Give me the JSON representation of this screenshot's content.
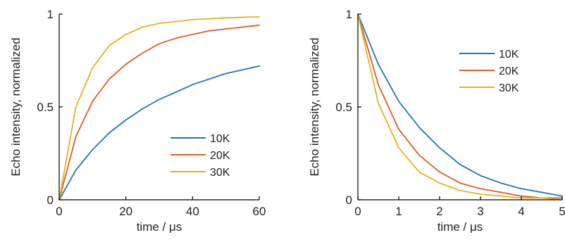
{
  "chart_data": [
    {
      "type": "line",
      "title": "",
      "xlabel": "time / μs",
      "ylabel": "Echo intensity, normalized",
      "xlim": [
        0,
        60
      ],
      "ylim": [
        0,
        1
      ],
      "xticks": [
        0,
        20,
        40,
        60
      ],
      "yticks": [
        0,
        0.5,
        1
      ],
      "ytick_labels": [
        "0",
        "0.5",
        "1"
      ],
      "legend_position": "lower-right",
      "grid": false,
      "series": [
        {
          "name": "10K",
          "color": "#1f77b4",
          "x": [
            0,
            5,
            10,
            15,
            20,
            25,
            30,
            35,
            40,
            45,
            50,
            55,
            60
          ],
          "y": [
            0,
            0.16,
            0.27,
            0.36,
            0.43,
            0.49,
            0.54,
            0.58,
            0.62,
            0.65,
            0.68,
            0.7,
            0.72
          ]
        },
        {
          "name": "20K",
          "color": "#d95f2b",
          "x": [
            0,
            5,
            10,
            15,
            20,
            25,
            30,
            35,
            40,
            45,
            50,
            55,
            60
          ],
          "y": [
            0,
            0.34,
            0.53,
            0.65,
            0.73,
            0.79,
            0.84,
            0.87,
            0.89,
            0.91,
            0.92,
            0.93,
            0.94
          ]
        },
        {
          "name": "30K",
          "color": "#e6b219",
          "x": [
            0,
            5,
            10,
            15,
            20,
            25,
            30,
            35,
            40,
            45,
            50,
            55,
            60
          ],
          "y": [
            0,
            0.5,
            0.71,
            0.83,
            0.89,
            0.93,
            0.95,
            0.96,
            0.97,
            0.975,
            0.98,
            0.983,
            0.985
          ]
        }
      ]
    },
    {
      "type": "line",
      "title": "",
      "xlabel": "time / μs",
      "ylabel": "Echo intensity, normalized",
      "xlim": [
        0,
        5
      ],
      "ylim": [
        0,
        1
      ],
      "xticks": [
        0,
        1,
        2,
        3,
        4,
        5
      ],
      "yticks": [
        0,
        0.5,
        1
      ],
      "ytick_labels": [
        "0",
        "0.5",
        "1"
      ],
      "legend_position": "top-right",
      "grid": false,
      "series": [
        {
          "name": "10K",
          "color": "#1f77b4",
          "x": [
            0,
            0.5,
            1,
            1.5,
            2,
            2.5,
            3,
            3.5,
            4,
            4.5,
            5
          ],
          "y": [
            1,
            0.73,
            0.53,
            0.39,
            0.28,
            0.19,
            0.13,
            0.09,
            0.06,
            0.04,
            0.02
          ]
        },
        {
          "name": "20K",
          "color": "#d95f2b",
          "x": [
            0,
            0.5,
            1,
            1.5,
            2,
            2.5,
            3,
            3.5,
            4,
            4.5,
            5
          ],
          "y": [
            1,
            0.62,
            0.38,
            0.24,
            0.15,
            0.09,
            0.06,
            0.04,
            0.02,
            0.01,
            0.01
          ]
        },
        {
          "name": "30K",
          "color": "#e6b219",
          "x": [
            0,
            0.5,
            1,
            1.5,
            2,
            2.5,
            3,
            3.5,
            4,
            4.5,
            5
          ],
          "y": [
            1,
            0.52,
            0.28,
            0.15,
            0.09,
            0.05,
            0.03,
            0.02,
            0.01,
            0.01,
            0.0
          ]
        }
      ]
    }
  ]
}
